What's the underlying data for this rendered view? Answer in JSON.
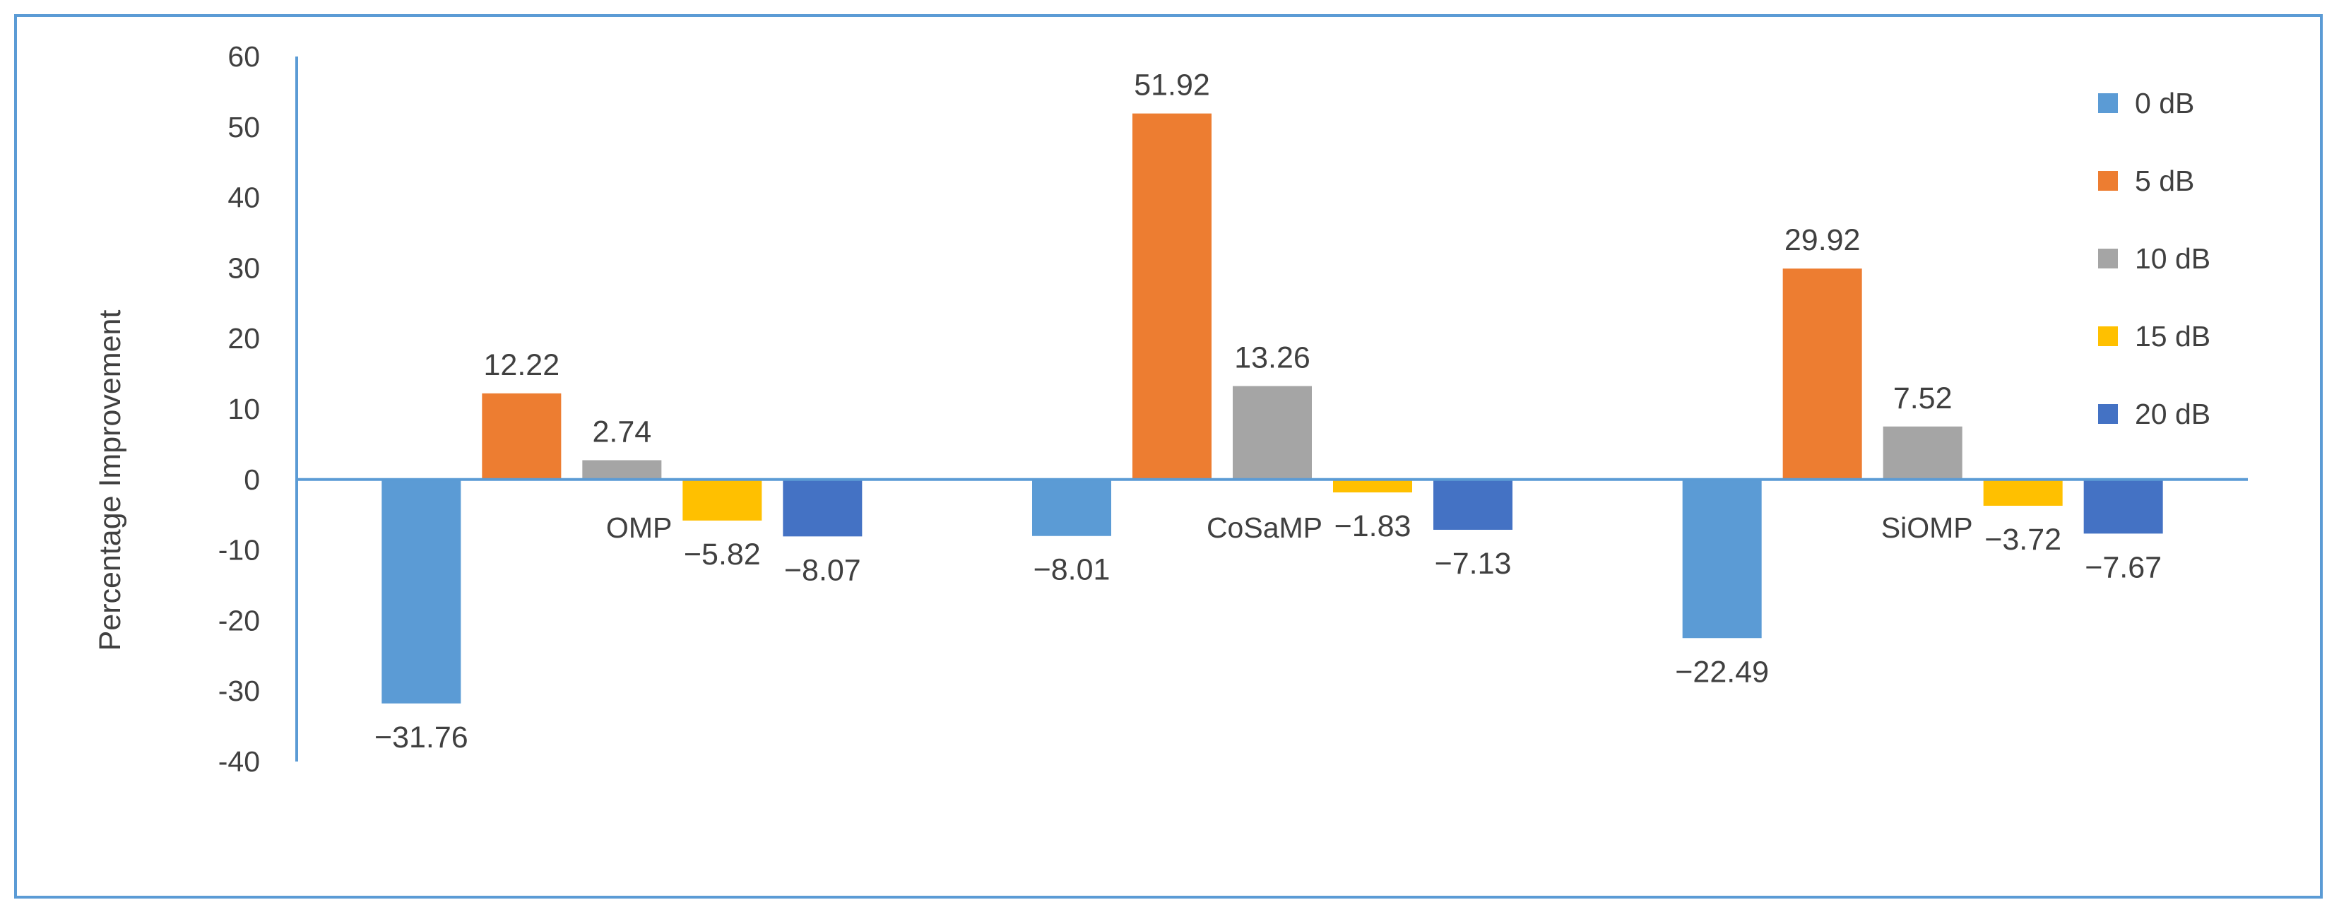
{
  "chart_data": {
    "type": "bar",
    "title": "",
    "xlabel": "",
    "ylabel": "Percentage Improvement",
    "ylim": [
      -40,
      60
    ],
    "yticks": [
      -40,
      -30,
      -20,
      -10,
      0,
      10,
      20,
      30,
      40,
      50,
      60
    ],
    "ytick_labels": [
      "-40",
      "-30",
      "-20",
      "-10",
      "0",
      "10",
      "20",
      "30",
      "40",
      "50",
      "60"
    ],
    "categories": [
      "OMP",
      "CoSaMP",
      "SiOMP"
    ],
    "series": [
      {
        "name": "0 dB",
        "color": "#5b9bd5",
        "values": [
          -31.76,
          -8.01,
          -22.49
        ],
        "labels": [
          "−31.76",
          "−8.01",
          "−22.49"
        ]
      },
      {
        "name": "5 dB",
        "color": "#ed7d31",
        "values": [
          12.22,
          51.92,
          29.92
        ],
        "labels": [
          "12.22",
          "51.92",
          "29.92"
        ]
      },
      {
        "name": "10 dB",
        "color": "#a5a5a5",
        "values": [
          2.74,
          13.26,
          7.52
        ],
        "labels": [
          "2.74",
          "13.26",
          "7.52"
        ]
      },
      {
        "name": "15 dB",
        "color": "#ffc000",
        "values": [
          -5.82,
          -1.83,
          -3.72
        ],
        "labels": [
          "−5.82",
          "−1.83",
          "−3.72"
        ]
      },
      {
        "name": "20 dB",
        "color": "#4472c4",
        "values": [
          -8.07,
          -7.13,
          -7.67
        ],
        "labels": [
          "−8.07",
          "−7.13",
          "−7.67"
        ]
      }
    ],
    "legend_position": "right",
    "grid": false,
    "axis_color": "#5b9bd5"
  }
}
